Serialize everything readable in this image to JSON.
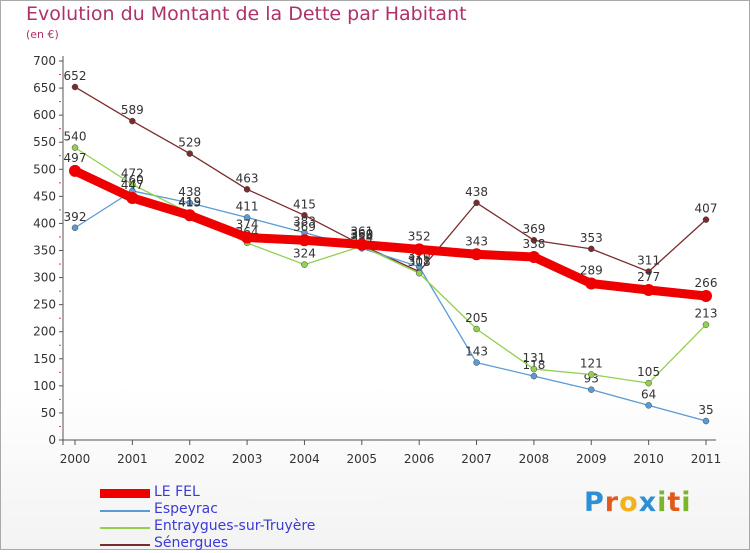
{
  "header": {
    "title": "Evolution du Montant de la Dette par Habitant",
    "unit": "(en €)"
  },
  "logo": {
    "letters": [
      "P",
      "r",
      "o",
      "x",
      "i",
      "t",
      "i"
    ],
    "colors": [
      "#2f8fd6",
      "#e05a1e",
      "#f2b21b",
      "#2f8fd6",
      "#7ab52a",
      "#e05a1e",
      "#7ab52a"
    ]
  },
  "chart_data": {
    "type": "line",
    "x": [
      "2000",
      "2001",
      "2002",
      "2003",
      "2004",
      "2005",
      "2006",
      "2007",
      "2008",
      "2009",
      "2010",
      "2011"
    ],
    "ylim": [
      0,
      700
    ],
    "yticks": [
      0,
      50,
      100,
      150,
      200,
      250,
      300,
      350,
      400,
      450,
      500,
      550,
      600,
      650,
      700
    ],
    "grid": false,
    "legend_position": "bottom-left",
    "series": [
      {
        "name": "Sénergues",
        "color": "#7b2b2b",
        "values": [
          652,
          589,
          529,
          463,
          415,
          360,
          311,
          438,
          369,
          353,
          311,
          407
        ]
      },
      {
        "name": "Espeyrac",
        "color": "#5b9bd5",
        "values": [
          392,
          460,
          438,
          411,
          383,
          354,
          320,
          143,
          118,
          93,
          64,
          35
        ]
      },
      {
        "name": "Entraygues-sur-Truyère",
        "color": "#92d050",
        "values": [
          540,
          472,
          419,
          364,
          324,
          358,
          308,
          205,
          131,
          121,
          105,
          213
        ]
      },
      {
        "name": "LE FEL",
        "color": "#ee0000",
        "values": [
          497,
          447,
          415,
          374,
          369,
          361,
          352,
          343,
          338,
          289,
          277,
          266
        ]
      }
    ],
    "legend": [
      {
        "label": "LE FEL",
        "color": "#ee0000"
      },
      {
        "label": "Espeyrac",
        "color": "#5b9bd5"
      },
      {
        "label": "Entraygues-sur-Truyère",
        "color": "#92d050"
      },
      {
        "label": "Sénergues",
        "color": "#7b2b2b"
      }
    ]
  }
}
